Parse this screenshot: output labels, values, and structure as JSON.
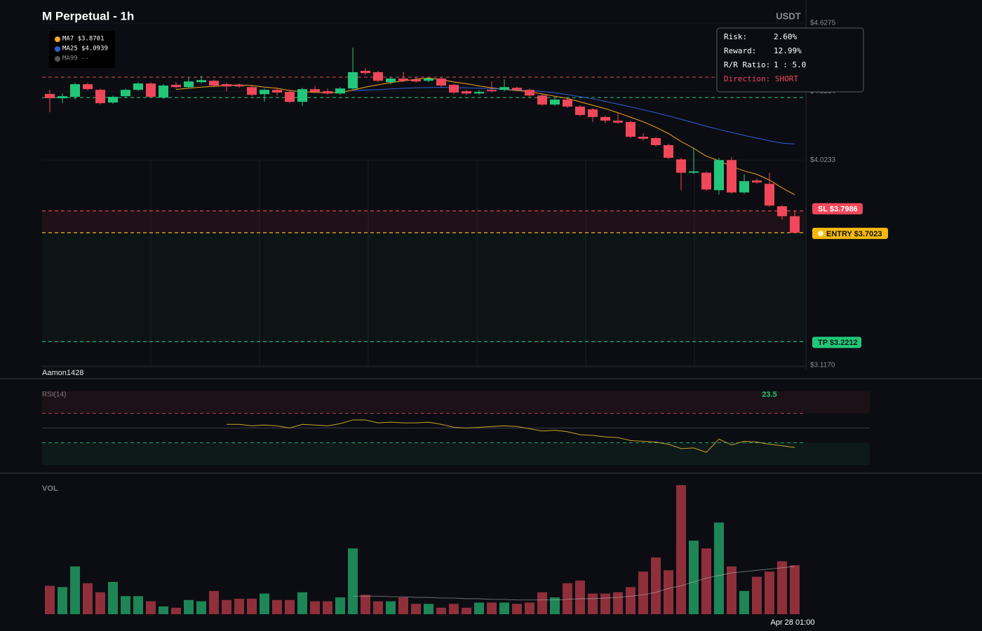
{
  "chart_data": [
    {
      "type": "candlestick",
      "title": "M Perpetual - 1h",
      "unit_label": "USDT",
      "watermark": "Aamon1428",
      "up_color": "#22c77a",
      "down_color": "#f0475a",
      "ylim": [
        3.117,
        4.6275
      ],
      "yticks": [
        {
          "value": 4.6275,
          "label": "$4.6275"
        },
        {
          "value": 4.3254,
          "label": "$4.3254"
        },
        {
          "value": 4.0233,
          "label": "$4.0233"
        },
        {
          "value": 3.117,
          "label": "$3.1170"
        }
      ],
      "open": [
        4.315,
        4.296,
        4.302,
        4.358,
        4.333,
        4.277,
        4.305,
        4.333,
        4.361,
        4.299,
        4.355,
        4.345,
        4.367,
        4.373,
        4.358,
        4.355,
        4.345,
        4.314,
        4.333,
        4.324,
        4.28,
        4.336,
        4.327,
        4.317,
        4.339,
        4.417,
        4.411,
        4.367,
        4.383,
        4.379,
        4.373,
        4.383,
        4.355,
        4.327,
        4.317,
        4.333,
        4.333,
        4.342,
        4.333,
        4.308,
        4.268,
        4.29,
        4.259,
        4.247,
        4.213,
        4.197,
        4.191,
        4.126,
        4.12,
        4.089,
        4.026,
        3.967,
        3.967,
        3.89,
        4.023,
        3.88,
        3.933,
        3.918,
        3.819,
        3.775
      ],
      "high": [
        4.333,
        4.318,
        4.364,
        4.364,
        4.339,
        4.308,
        4.339,
        4.367,
        4.367,
        4.358,
        4.367,
        4.389,
        4.395,
        4.379,
        4.364,
        4.361,
        4.351,
        4.339,
        4.339,
        4.33,
        4.342,
        4.351,
        4.339,
        4.345,
        4.519,
        4.429,
        4.417,
        4.389,
        4.411,
        4.389,
        4.389,
        4.389,
        4.361,
        4.333,
        4.333,
        4.37,
        4.379,
        4.348,
        4.339,
        4.314,
        4.296,
        4.296,
        4.265,
        4.253,
        4.219,
        4.234,
        4.197,
        4.141,
        4.126,
        4.095,
        4.033,
        4.079,
        3.973,
        4.033,
        4.036,
        3.961,
        3.942,
        3.967,
        3.825,
        3.8
      ],
      "low": [
        4.234,
        4.274,
        4.29,
        4.33,
        4.268,
        4.271,
        4.299,
        4.327,
        4.296,
        4.293,
        4.339,
        4.339,
        4.361,
        4.345,
        4.327,
        4.342,
        4.305,
        4.28,
        4.308,
        4.274,
        4.261,
        4.318,
        4.311,
        4.311,
        4.333,
        4.398,
        4.367,
        4.358,
        4.367,
        4.364,
        4.367,
        4.345,
        4.314,
        4.311,
        4.311,
        4.321,
        4.327,
        4.327,
        4.302,
        4.262,
        4.262,
        4.253,
        4.216,
        4.191,
        4.185,
        4.182,
        4.12,
        4.11,
        4.083,
        4.027,
        3.89,
        3.961,
        3.887,
        3.871,
        3.874,
        3.874,
        3.918,
        3.816,
        3.76,
        3.7
      ],
      "close": [
        4.296,
        4.305,
        4.358,
        4.336,
        4.274,
        4.302,
        4.333,
        4.361,
        4.302,
        4.352,
        4.345,
        4.37,
        4.376,
        4.352,
        4.348,
        4.348,
        4.311,
        4.333,
        4.321,
        4.28,
        4.336,
        4.324,
        4.317,
        4.339,
        4.411,
        4.407,
        4.373,
        4.383,
        4.373,
        4.37,
        4.383,
        4.352,
        4.321,
        4.317,
        4.324,
        4.327,
        4.345,
        4.333,
        4.308,
        4.268,
        4.29,
        4.259,
        4.222,
        4.213,
        4.197,
        4.188,
        4.126,
        4.117,
        4.089,
        4.033,
        3.967,
        3.973,
        3.893,
        4.023,
        3.88,
        3.93,
        3.924,
        3.822,
        3.775,
        3.7023
      ],
      "series": [
        {
          "name": "MA7",
          "value_label": "$3.8701",
          "color": "#f5a623",
          "values": [
            null,
            null,
            null,
            null,
            null,
            null,
            null,
            null,
            null,
            null,
            4.335,
            4.34,
            4.345,
            4.348,
            4.352,
            4.355,
            4.352,
            4.345,
            4.34,
            4.33,
            4.325,
            4.322,
            4.32,
            4.322,
            4.332,
            4.345,
            4.355,
            4.365,
            4.372,
            4.38,
            4.385,
            4.378,
            4.368,
            4.36,
            4.35,
            4.342,
            4.335,
            4.33,
            4.325,
            4.315,
            4.305,
            4.295,
            4.28,
            4.265,
            4.25,
            4.232,
            4.212,
            4.192,
            4.168,
            4.14,
            4.105,
            4.075,
            4.04,
            4.02,
            3.995,
            3.975,
            3.96,
            3.935,
            3.9,
            3.8701
          ]
        },
        {
          "name": "MA25",
          "value_label": "$4.0939",
          "color": "#2f5fd6",
          "values": [
            null,
            null,
            null,
            null,
            null,
            null,
            null,
            null,
            null,
            null,
            null,
            null,
            null,
            null,
            null,
            null,
            null,
            null,
            null,
            null,
            null,
            null,
            null,
            null,
            4.33,
            4.332,
            4.334,
            4.337,
            4.34,
            4.342,
            4.343,
            4.344,
            4.343,
            4.342,
            4.34,
            4.338,
            4.336,
            4.333,
            4.33,
            4.326,
            4.32,
            4.312,
            4.303,
            4.293,
            4.282,
            4.27,
            4.258,
            4.245,
            4.232,
            4.218,
            4.203,
            4.188,
            4.172,
            4.158,
            4.145,
            4.132,
            4.12,
            4.108,
            4.098,
            4.0939
          ]
        },
        {
          "name": "MA99",
          "value_label": "--",
          "color": "#555555",
          "values": [
            null,
            null,
            null,
            null,
            null,
            null,
            null,
            null,
            null,
            null,
            null,
            null,
            null,
            null,
            null,
            null,
            null,
            null,
            null,
            null,
            null,
            null,
            null,
            null,
            null,
            null,
            null,
            null,
            null,
            null,
            null,
            null,
            null,
            null,
            null,
            null,
            null,
            null,
            null,
            null,
            null,
            null,
            null,
            null,
            null,
            null,
            null,
            null,
            null,
            null,
            null,
            null,
            null,
            null,
            null,
            null,
            null,
            null,
            null,
            null
          ]
        }
      ],
      "levels": [
        {
          "label": "SL $3.7986",
          "value": 3.7986,
          "color": "#f0475a"
        },
        {
          "label": "ENTRY $3.7023",
          "value": 3.7023,
          "color": "#f5b90b"
        },
        {
          "label": "TP $3.2212",
          "value": 3.2212,
          "color": "#22c77a"
        }
      ],
      "reference_lines": [
        {
          "value": 4.389,
          "color": "#c8414f"
        },
        {
          "value": 4.299,
          "color": "#1fa866"
        }
      ],
      "info": {
        "rows": [
          [
            "Risk:",
            "2.60%"
          ],
          [
            "Reward:",
            "12.99%"
          ],
          [
            "R/R Ratio:",
            "1 : 5.0"
          ]
        ],
        "direction": "Direction: SHORT"
      }
    },
    {
      "type": "line",
      "title": "RSI(14)",
      "value_label": "23.5",
      "color": "#c9a227",
      "ylim": [
        0,
        100
      ],
      "levels": [
        70,
        50,
        30
      ],
      "values": [
        null,
        null,
        null,
        null,
        null,
        null,
        null,
        null,
        null,
        null,
        null,
        null,
        null,
        null,
        55,
        55,
        53,
        54,
        53,
        50,
        55,
        54,
        53,
        56,
        61,
        61,
        57,
        58,
        57,
        57,
        58,
        55,
        51,
        50,
        51,
        52,
        53,
        52,
        49,
        46,
        47,
        45,
        41,
        40,
        38,
        37,
        33,
        32,
        31,
        28,
        22,
        23,
        17,
        35,
        27,
        32,
        31,
        28,
        26,
        23.5
      ]
    },
    {
      "type": "bar",
      "title": "VOL",
      "up_color": "#1d8556",
      "down_color": "#8e2f3b",
      "ylim": [
        0,
        100
      ],
      "categories": [
        null,
        null,
        null,
        null,
        null,
        null,
        null,
        null,
        null,
        null,
        null,
        null,
        null,
        null,
        null,
        null,
        null,
        null,
        null,
        null,
        null,
        null,
        null,
        null,
        null,
        null,
        null,
        null,
        null,
        null,
        null,
        null,
        null,
        null,
        null,
        null,
        null,
        null,
        null,
        null,
        null,
        null,
        null,
        null,
        null,
        null,
        null,
        null,
        null,
        null,
        null,
        null,
        null,
        null,
        null,
        null,
        null,
        null,
        null,
        "Apr 28 01:00"
      ],
      "values": [
        22,
        21,
        37,
        24,
        17,
        25,
        14,
        14,
        10,
        6,
        5,
        11,
        10,
        18,
        11,
        12,
        12,
        16,
        11,
        11,
        17,
        10,
        10,
        13,
        51,
        15,
        10,
        10,
        13,
        8,
        8,
        5,
        8,
        5,
        9,
        9,
        9,
        8,
        9,
        17,
        13,
        24,
        26,
        16,
        16,
        17,
        21,
        33,
        44,
        34,
        100,
        57,
        51,
        71,
        37,
        18,
        29,
        33,
        41,
        38
      ],
      "ma": {
        "color": "#b8b8b8",
        "values": [
          null,
          null,
          null,
          null,
          null,
          null,
          null,
          null,
          null,
          null,
          null,
          null,
          null,
          null,
          null,
          null,
          null,
          null,
          null,
          null,
          null,
          null,
          null,
          null,
          14,
          14,
          14,
          13.5,
          13.5,
          13,
          13,
          12.5,
          12.5,
          12,
          12,
          11.5,
          11.5,
          11,
          11,
          11,
          11,
          11.5,
          12,
          12,
          12.5,
          13,
          14,
          15,
          17,
          20,
          22,
          25,
          28,
          30,
          32,
          33,
          34,
          35,
          36,
          37
        ]
      }
    }
  ]
}
